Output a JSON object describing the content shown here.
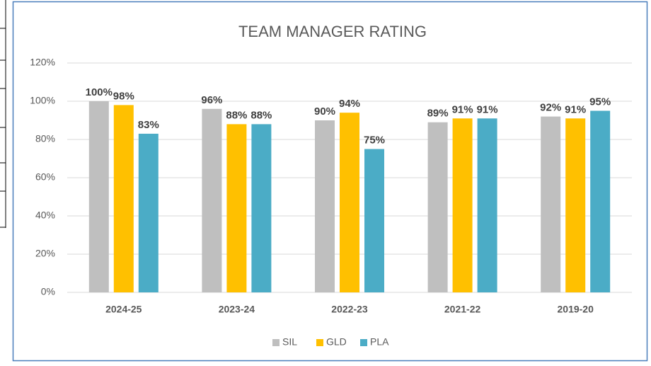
{
  "chart_data": {
    "type": "bar",
    "title": "TEAM MANAGER RATING",
    "categories": [
      "2024-25",
      "2023-24",
      "2022-23",
      "2021-22",
      "2019-20"
    ],
    "series": [
      {
        "name": "SIL",
        "color": "#bfbfbf",
        "values": [
          100,
          96,
          90,
          89,
          92
        ],
        "value_labels": [
          "100%",
          "96%",
          "90%",
          "89%",
          "92%"
        ]
      },
      {
        "name": "GLD",
        "color": "#ffc000",
        "values": [
          98,
          88,
          94,
          91,
          91
        ],
        "value_labels": [
          "98%",
          "88%",
          "94%",
          "91%",
          "91%"
        ]
      },
      {
        "name": "PLA",
        "color": "#4bacc6",
        "values": [
          83,
          88,
          75,
          91,
          95
        ],
        "value_labels": [
          "83%",
          "88%",
          "75%",
          "91%",
          "95%"
        ]
      }
    ],
    "ylim": [
      0,
      120
    ],
    "yticks": [
      {
        "value": 0,
        "label": "0%"
      },
      {
        "value": 20,
        "label": "20%"
      },
      {
        "value": 40,
        "label": "40%"
      },
      {
        "value": 60,
        "label": "60%"
      },
      {
        "value": 80,
        "label": "80%"
      },
      {
        "value": 100,
        "label": "100%"
      },
      {
        "value": 120,
        "label": "120%"
      }
    ],
    "grid": true,
    "legend": "bottom"
  }
}
